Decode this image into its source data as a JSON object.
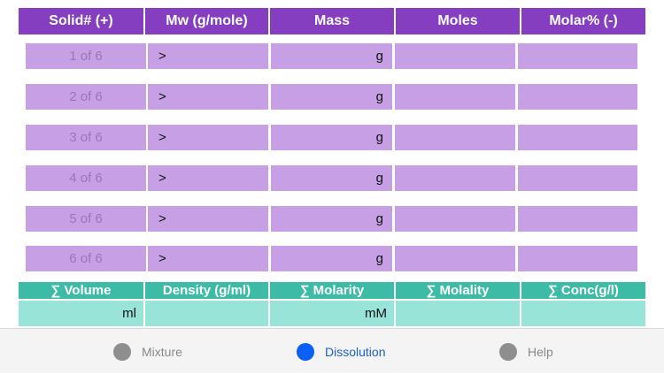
{
  "header": [
    "Solid# (+)",
    "Mw (g/mole)",
    "Mass",
    "Moles",
    "Molar% (-)"
  ],
  "rows": [
    {
      "num": "1 of 6",
      "mw": ">",
      "mass": "g"
    },
    {
      "num": "2 of 6",
      "mw": ">",
      "mass": "g"
    },
    {
      "num": "3 of 6",
      "mw": ">",
      "mass": "g"
    },
    {
      "num": "4 of 6",
      "mw": ">",
      "mass": "g"
    },
    {
      "num": "5 of 6",
      "mw": ">",
      "mass": "g"
    },
    {
      "num": "6 of 6",
      "mw": ">",
      "mass": "g"
    }
  ],
  "summary": {
    "headers": [
      "∑  Volume",
      "Density (g/ml)",
      "∑ Molarity",
      "∑ Molality",
      "∑ Conc(g/l)"
    ],
    "values": [
      "ml",
      "",
      "mM",
      "",
      ""
    ]
  },
  "tabs": [
    {
      "label": "Mixture",
      "active": false
    },
    {
      "label": "Dissolution",
      "active": true
    },
    {
      "label": "Help",
      "active": false
    }
  ],
  "colors": {
    "header": "#853ec0",
    "row": "#c79fe5",
    "summary_header": "#3cbca6",
    "summary_row": "#98e4d8",
    "active_tab": "#0a5ff5"
  }
}
